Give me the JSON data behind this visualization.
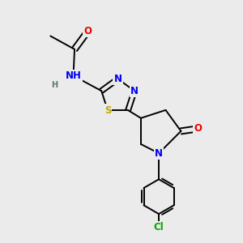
{
  "bg_color": "#ebebeb",
  "bond_color": "#000000",
  "atom_colors": {
    "N": "#0000ee",
    "O": "#ee0000",
    "S": "#bbaa00",
    "Cl": "#00aa00",
    "H": "#557777",
    "C": "#000000"
  },
  "font_size": 8.5,
  "line_width": 1.4,
  "figsize": [
    3.0,
    3.0
  ],
  "dpi": 100
}
